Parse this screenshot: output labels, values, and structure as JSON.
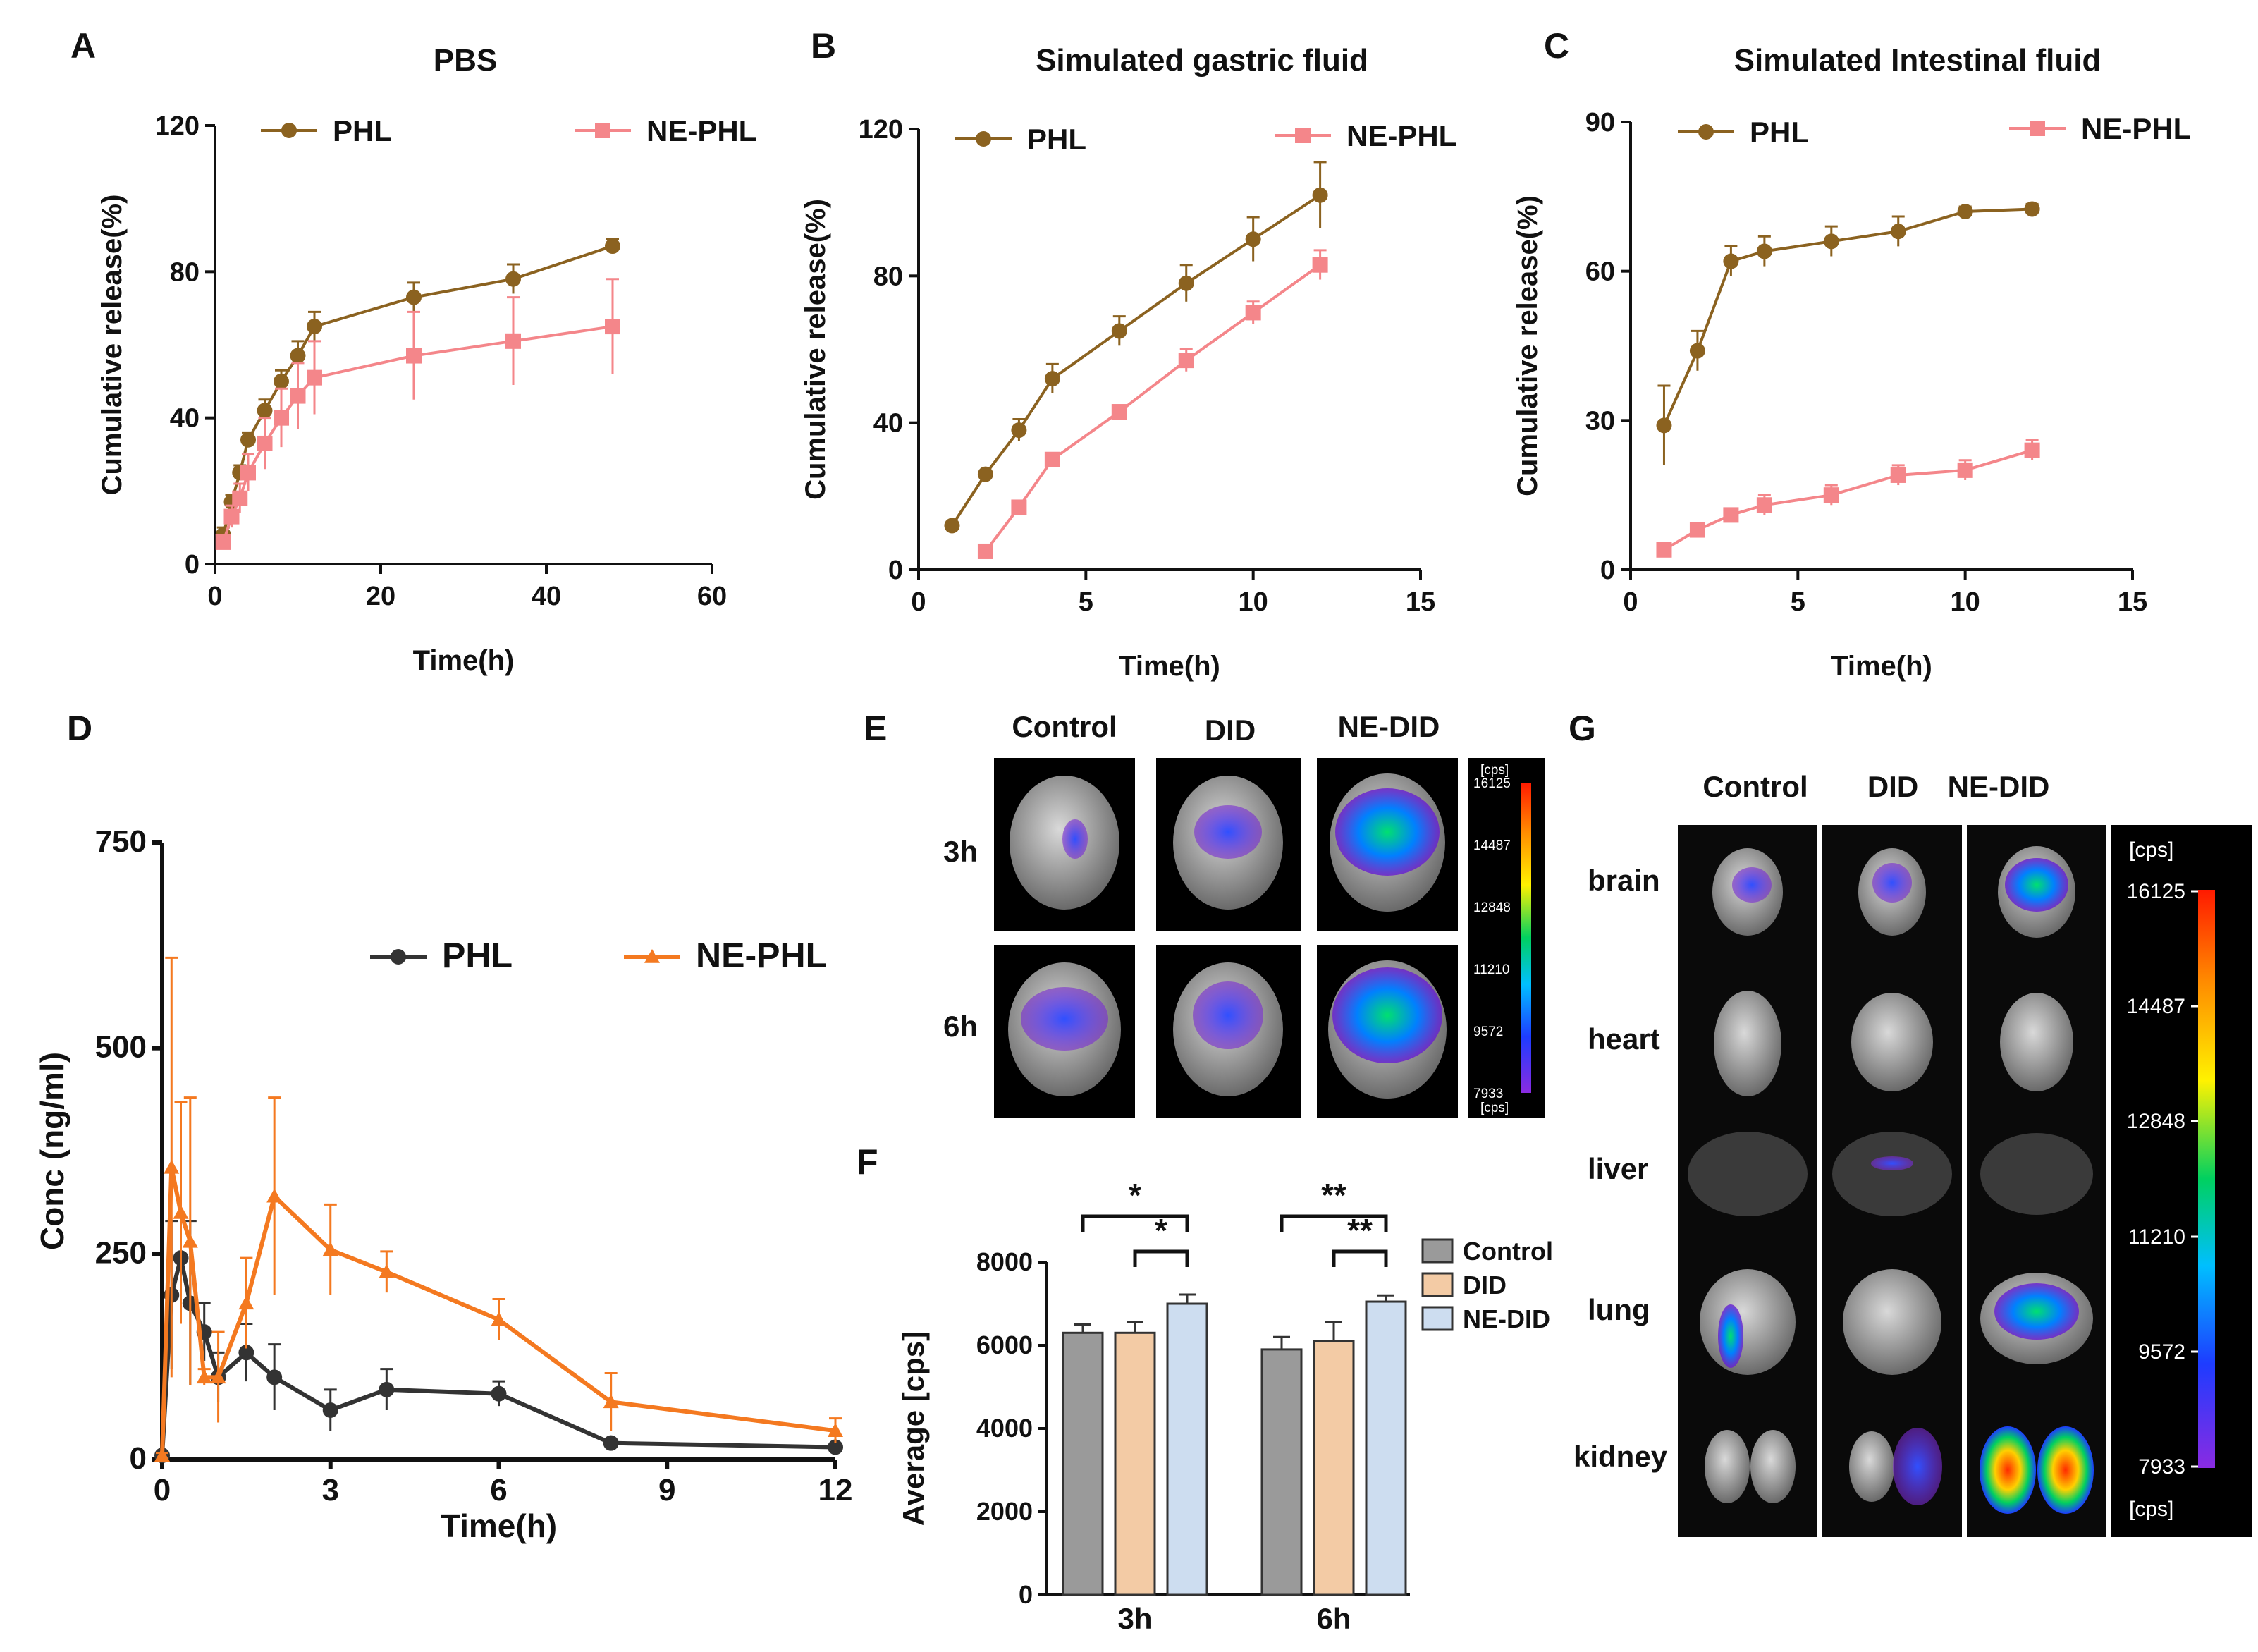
{
  "panels": {
    "A": {
      "letter": "A",
      "title": "PBS"
    },
    "B": {
      "letter": "B",
      "title": "Simulated gastric fluid"
    },
    "C": {
      "letter": "C",
      "title": "Simulated  Intestinal fluid"
    },
    "D": {
      "letter": "D"
    },
    "E": {
      "letter": "E"
    },
    "F": {
      "letter": "F"
    },
    "G": {
      "letter": "G"
    }
  },
  "colors": {
    "phl_release": "#8B6220",
    "nephl_release": "#F4868A",
    "phl_pk": "#333333",
    "nephl_pk": "#F47920"
  },
  "imaging": {
    "E": {
      "columns": [
        "Control",
        "DID",
        "NE-DID"
      ],
      "rows": [
        "3h",
        "6h"
      ],
      "colorbar_unit": "[cps]",
      "colorbar_ticks": [
        "16125",
        "14487",
        "12848",
        "11210",
        "9572",
        "7933"
      ]
    },
    "G": {
      "columns": [
        "Control",
        "DID",
        "NE-DID"
      ],
      "rows": [
        "brain",
        "heart",
        "liver",
        "lung",
        "kidney"
      ],
      "colorbar_unit": "[cps]",
      "colorbar_ticks": [
        "16125",
        "14487",
        "12848",
        "11210",
        "9572",
        "7933"
      ]
    }
  },
  "chart_data": [
    {
      "id": "A",
      "type": "line",
      "title": "PBS",
      "xlabel": "Time(h)",
      "ylabel": "Cumulative release(%)",
      "xlim": [
        0,
        60
      ],
      "ylim": [
        0,
        120
      ],
      "xticks": [
        "0",
        "20",
        "40",
        "60"
      ],
      "yticks": [
        "0",
        "40",
        "80",
        "120"
      ],
      "series": [
        {
          "name": "PHL",
          "marker": "circle",
          "x": [
            1,
            2,
            3,
            4,
            6,
            8,
            10,
            12,
            24,
            36,
            48
          ],
          "y": [
            8,
            17,
            25,
            34,
            42,
            50,
            57,
            65,
            73,
            78,
            87
          ],
          "err": [
            2,
            2,
            2,
            2,
            3,
            3,
            4,
            4,
            4,
            4,
            2
          ]
        },
        {
          "name": "NE-PHL",
          "marker": "square",
          "x": [
            1,
            2,
            3,
            4,
            6,
            8,
            10,
            12,
            24,
            36,
            48
          ],
          "y": [
            6,
            13,
            18,
            25,
            33,
            40,
            46,
            51,
            57,
            61,
            65
          ],
          "err": [
            2,
            3,
            4,
            5,
            7,
            8,
            9,
            10,
            12,
            12,
            13
          ]
        }
      ]
    },
    {
      "id": "B",
      "type": "line",
      "title": "Simulated gastric fluid",
      "xlabel": "Time(h)",
      "ylabel": "Cumulative release(%)",
      "xlim": [
        0,
        15
      ],
      "ylim": [
        0,
        120
      ],
      "xticks": [
        "0",
        "5",
        "10",
        "15"
      ],
      "yticks": [
        "0",
        "40",
        "80",
        "120"
      ],
      "series": [
        {
          "name": "PHL",
          "marker": "circle",
          "x": [
            1,
            2,
            3,
            4,
            6,
            8,
            10,
            12
          ],
          "y": [
            12,
            26,
            38,
            52,
            65,
            78,
            90,
            102
          ],
          "err": [
            1,
            1,
            3,
            4,
            4,
            5,
            6,
            9
          ]
        },
        {
          "name": "NE-PHL",
          "marker": "square",
          "x": [
            2,
            3,
            4,
            6,
            8,
            10,
            12
          ],
          "y": [
            5,
            17,
            30,
            43,
            57,
            70,
            83
          ],
          "err": [
            1,
            1,
            1,
            1,
            3,
            3,
            4
          ]
        }
      ]
    },
    {
      "id": "C",
      "type": "line",
      "title": "Simulated  Intestinal fluid",
      "xlabel": "Time(h)",
      "ylabel": "Cumulative release(%)",
      "xlim": [
        0,
        15
      ],
      "ylim": [
        0,
        90
      ],
      "xticks": [
        "0",
        "5",
        "10",
        "15"
      ],
      "yticks": [
        "0",
        "30",
        "60",
        "90"
      ],
      "series": [
        {
          "name": "PHL",
          "marker": "circle",
          "x": [
            1,
            2,
            3,
            4,
            6,
            8,
            10,
            12
          ],
          "y": [
            29,
            44,
            62,
            64,
            66,
            68,
            72,
            72.5
          ],
          "err": [
            8,
            4,
            3,
            3,
            3,
            3,
            1,
            1
          ]
        },
        {
          "name": "NE-PHL",
          "marker": "square",
          "x": [
            1,
            2,
            3,
            4,
            6,
            8,
            10,
            12
          ],
          "y": [
            4,
            8,
            11,
            13,
            15,
            19,
            20,
            24
          ],
          "err": [
            1,
            1,
            1,
            2,
            2,
            2,
            2,
            2
          ]
        }
      ]
    },
    {
      "id": "D",
      "type": "line",
      "xlabel": "Time(h)",
      "ylabel": "Conc (ng/ml)",
      "xlim": [
        0,
        12
      ],
      "ylim": [
        0,
        750
      ],
      "xticks": [
        "0",
        "3",
        "6",
        "9",
        "12"
      ],
      "yticks": [
        "0",
        "250",
        "500",
        "750"
      ],
      "series": [
        {
          "name": "PHL",
          "marker": "circle",
          "x": [
            0,
            0.167,
            0.333,
            0.5,
            0.75,
            1,
            1.5,
            2,
            3,
            4,
            6,
            8,
            12
          ],
          "y": [
            5,
            200,
            245,
            190,
            155,
            100,
            130,
            100,
            60,
            85,
            80,
            20,
            15
          ],
          "err": [
            3,
            90,
            50,
            100,
            35,
            30,
            35,
            40,
            25,
            25,
            15,
            4,
            4
          ]
        },
        {
          "name": "NE-PHL",
          "marker": "triangle",
          "x": [
            0,
            0.167,
            0.333,
            0.5,
            0.75,
            1,
            1.5,
            2,
            3,
            4,
            6,
            8,
            12
          ],
          "y": [
            5,
            355,
            300,
            265,
            100,
            100,
            190,
            320,
            255,
            228,
            170,
            70,
            35
          ],
          "err": [
            3,
            255,
            135,
            175,
            10,
            55,
            55,
            120,
            55,
            25,
            25,
            35,
            15
          ]
        }
      ]
    },
    {
      "id": "F",
      "type": "bar",
      "ylabel": "Average [cps]",
      "ylim": [
        0,
        8000
      ],
      "categories": [
        "3h",
        "6h"
      ],
      "yticks": [
        "0",
        "2000",
        "4000",
        "6000",
        "8000"
      ],
      "series": [
        {
          "name": "Control",
          "color": "#9a9a9a",
          "values": [
            6300,
            5900
          ],
          "err": [
            200,
            300
          ]
        },
        {
          "name": "DID",
          "color": "#F3CBA5",
          "values": [
            6300,
            6100
          ],
          "err": [
            250,
            450
          ]
        },
        {
          "name": "NE-DID",
          "color": "#CDDDF0",
          "values": [
            7000,
            7050
          ],
          "err": [
            220,
            150
          ]
        }
      ],
      "significance": [
        {
          "group": "3h",
          "from": "Control",
          "to": "NE-DID",
          "label": "*"
        },
        {
          "group": "3h",
          "from": "DID",
          "to": "NE-DID",
          "label": "*"
        },
        {
          "group": "6h",
          "from": "Control",
          "to": "NE-DID",
          "label": "**"
        },
        {
          "group": "6h",
          "from": "DID",
          "to": "NE-DID",
          "label": "**"
        }
      ]
    }
  ]
}
